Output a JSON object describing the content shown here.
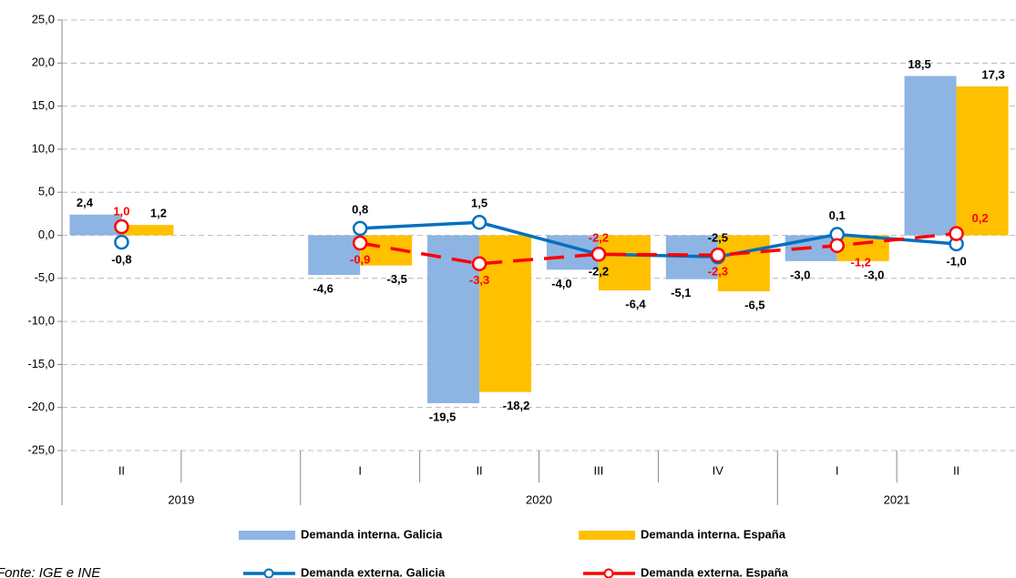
{
  "chart_data": {
    "type": "bar",
    "categories": [
      "II",
      null,
      "I",
      "II",
      "III",
      "IV",
      "I",
      "II"
    ],
    "category_groups": [
      "2019",
      "2019",
      "2020",
      "2020",
      "2020",
      "2020",
      "2021",
      "2021"
    ],
    "ylim": [
      -25,
      25
    ],
    "yticks": [
      {
        "value": -25,
        "label": "-25,0"
      },
      {
        "value": -20,
        "label": "-20,0"
      },
      {
        "value": -15,
        "label": "-15,0"
      },
      {
        "value": -10,
        "label": "-10,0"
      },
      {
        "value": -5,
        "label": "-5,0"
      },
      {
        "value": 0,
        "label": "0,0"
      },
      {
        "value": 5,
        "label": "5,0"
      },
      {
        "value": 10,
        "label": "10,0"
      },
      {
        "value": 15,
        "label": "15,0"
      },
      {
        "value": 20,
        "label": "20,0"
      },
      {
        "value": 25,
        "label": "25,0"
      }
    ],
    "grid": true,
    "series": [
      {
        "name": "Demanda interna. Galicia",
        "type": "bar",
        "color": "#8eb4e3",
        "values": [
          2.4,
          null,
          -4.6,
          -19.5,
          -4.0,
          -5.1,
          -3.0,
          18.5
        ],
        "value_labels": [
          "2,4",
          null,
          "-4,6",
          "-19,5",
          "-4,0",
          "-5,1",
          "-3,0",
          "18,5"
        ]
      },
      {
        "name": "Demanda interna. España",
        "type": "bar",
        "color": "#ffc000",
        "values": [
          1.2,
          null,
          -3.5,
          -18.2,
          -6.4,
          -6.5,
          -3.0,
          17.3
        ],
        "value_labels": [
          "1,2",
          null,
          "-3,5",
          "-18,2",
          "-6,4",
          "-6,5",
          "-3,0",
          "17,3"
        ]
      },
      {
        "name": "Demanda externa. Galicia",
        "type": "line",
        "color": "#0070c0",
        "line_style": "solid",
        "values": [
          -0.8,
          null,
          0.8,
          1.5,
          -2.2,
          -2.5,
          0.1,
          -1.0
        ],
        "value_labels": [
          "-0,8",
          null,
          "0,8",
          "1,5",
          "-2,2",
          "-2,5",
          "0,1",
          "-1,0"
        ]
      },
      {
        "name": "Demanda externa. España",
        "type": "line",
        "color": "#ff0000",
        "line_style": "dashed",
        "values": [
          1.0,
          null,
          -0.9,
          -3.3,
          -2.2,
          -2.3,
          -1.2,
          0.2
        ],
        "value_labels": [
          "1,0",
          null,
          "-0,9",
          "-3,3",
          "-2,2",
          "-2,3",
          "-1,2",
          "0,2"
        ]
      }
    ],
    "source": "Fonte: IGE e INE"
  }
}
